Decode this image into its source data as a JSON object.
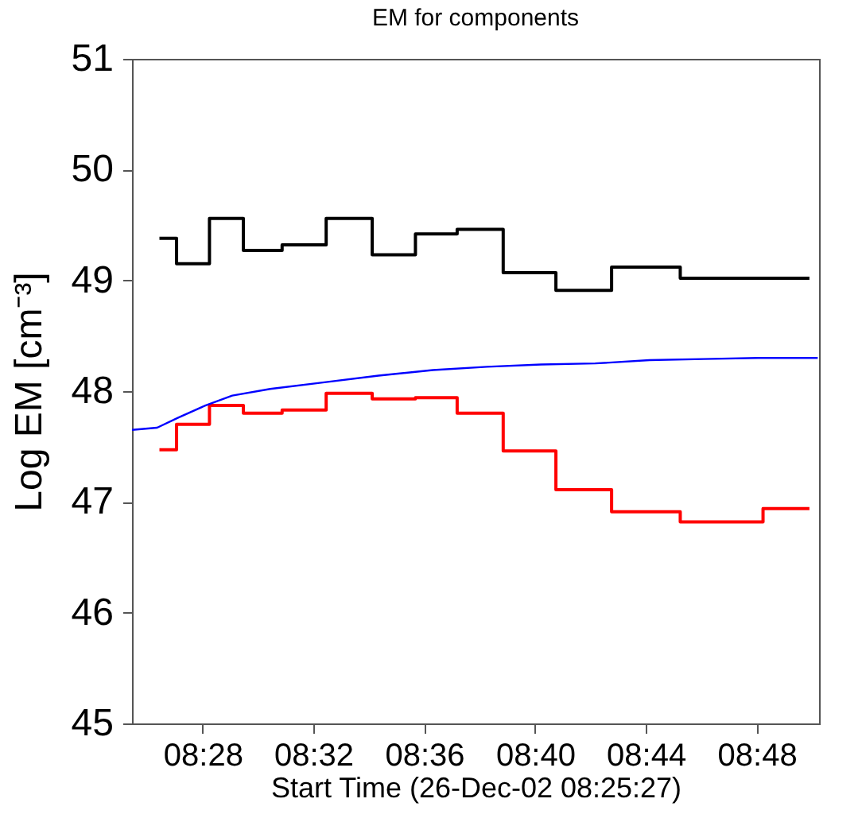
{
  "chart_data": {
    "type": "step",
    "title": "EM for components",
    "xlabel": "Start Time (26-Dec-02 08:25:27)",
    "ylabel": "Log EM  [cm⁻³]",
    "xlim": [
      8.4242,
      8.8375
    ],
    "ylim": [
      45,
      51
    ],
    "xticks": [
      {
        "value": 8.4667,
        "label": "08:28"
      },
      {
        "value": 8.5333,
        "label": "08:32"
      },
      {
        "value": 8.6,
        "label": "08:36"
      },
      {
        "value": 8.6667,
        "label": "08:40"
      },
      {
        "value": 8.7333,
        "label": "08:44"
      },
      {
        "value": 8.8,
        "label": "08:48"
      }
    ],
    "yticks": [
      45,
      46,
      47,
      48,
      49,
      50,
      51
    ],
    "x": [
      8.4407,
      8.451,
      8.4708,
      8.4912,
      8.5145,
      8.541,
      8.5687,
      8.5947,
      8.6198,
      8.6475,
      8.6792,
      8.7127,
      8.754,
      8.8038,
      8.8317
    ],
    "series": [
      {
        "color": "#000000",
        "values": [
          49.38,
          49.15,
          49.56,
          49.27,
          49.32,
          49.56,
          49.23,
          49.42,
          49.46,
          49.07,
          48.91,
          49.12,
          49.02,
          49.02,
          49.02
        ]
      },
      {
        "color": "#ff0000",
        "values": [
          47.47,
          47.7,
          47.87,
          47.8,
          47.83,
          47.98,
          47.93,
          47.94,
          47.8,
          47.46,
          47.11,
          46.91,
          46.82,
          46.94,
          46.94
        ]
      },
      {
        "type": "line",
        "color": "#0000ff",
        "x": [
          8.4242,
          8.4393,
          8.452,
          8.4683,
          8.4845,
          8.5073,
          8.54,
          8.5725,
          8.6052,
          8.6377,
          8.6703,
          8.7028,
          8.7355,
          8.768,
          8.8007,
          8.8367
        ],
        "values": [
          47.65,
          47.67,
          47.76,
          47.87,
          47.96,
          48.02,
          48.08,
          48.14,
          48.19,
          48.22,
          48.24,
          48.25,
          48.28,
          48.29,
          48.3,
          48.3
        ]
      }
    ]
  }
}
